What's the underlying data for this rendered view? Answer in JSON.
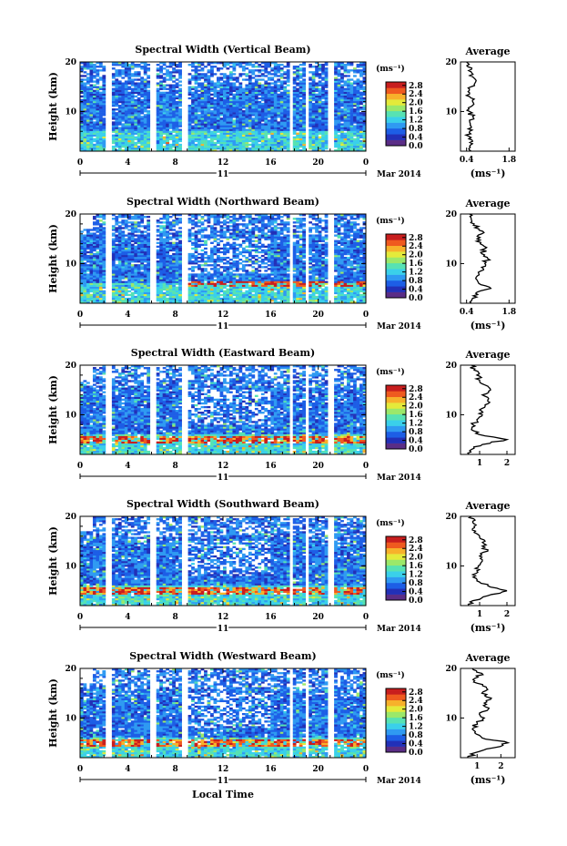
{
  "chart_data": [
    {
      "type": "heatmap",
      "title": "Spectral Width (Vertical Beam)",
      "ylabel": "Height (km)",
      "ylim": [
        2,
        20
      ],
      "yticks": [
        10,
        20
      ],
      "xlim": [
        0,
        24
      ],
      "xticks": [
        "0",
        "4",
        "8",
        "12",
        "16",
        "20",
        "0"
      ],
      "date_day": "11",
      "date_label": "Mar 2014",
      "colorbar": {
        "unit": "(ms⁻¹)",
        "ticks": [
          "0.0",
          "0.4",
          "0.8",
          "1.2",
          "1.6",
          "2.0",
          "2.4",
          "2.8"
        ]
      },
      "average": {
        "title": "Average",
        "xticks": [
          "0.4",
          "1.8"
        ],
        "xlim": [
          0.2,
          2.0
        ],
        "xlabel": "(ms⁻¹)",
        "profile": [
          [
            2,
            0.55
          ],
          [
            3,
            0.5
          ],
          [
            4,
            0.6
          ],
          [
            5,
            0.48
          ],
          [
            6,
            0.5
          ],
          [
            7,
            0.55
          ],
          [
            8,
            0.5
          ],
          [
            9,
            0.6
          ],
          [
            10,
            0.5
          ],
          [
            11,
            0.55
          ],
          [
            12,
            0.6
          ],
          [
            13,
            0.5
          ],
          [
            14,
            0.45
          ],
          [
            15,
            0.55
          ],
          [
            16,
            0.7
          ],
          [
            17,
            0.6
          ],
          [
            18,
            0.55
          ],
          [
            19,
            0.45
          ],
          [
            20,
            0.4
          ]
        ]
      }
    },
    {
      "type": "heatmap",
      "title": "Spectral Width (Northward Beam)",
      "ylabel": "Height (km)",
      "ylim": [
        2,
        20
      ],
      "yticks": [
        10,
        20
      ],
      "xlim": [
        0,
        24
      ],
      "xticks": [
        "0",
        "4",
        "8",
        "12",
        "16",
        "20",
        "0"
      ],
      "date_day": "11",
      "date_label": "Mar 2014",
      "colorbar": {
        "unit": "(ms⁻¹)",
        "ticks": [
          "0.0",
          "0.4",
          "0.8",
          "1.2",
          "1.6",
          "2.0",
          "2.4",
          "2.8"
        ]
      },
      "average": {
        "title": "Average",
        "xticks": [
          "0.4",
          "1.8"
        ],
        "xlim": [
          0.2,
          2.0
        ],
        "xlabel": "(ms⁻¹)",
        "profile": [
          [
            2,
            0.55
          ],
          [
            3,
            0.6
          ],
          [
            4,
            0.7
          ],
          [
            5,
            1.2
          ],
          [
            6,
            0.8
          ],
          [
            7,
            0.7
          ],
          [
            8,
            0.8
          ],
          [
            9,
            0.95
          ],
          [
            10,
            1.0
          ],
          [
            11,
            1.1
          ],
          [
            12,
            0.9
          ],
          [
            13,
            1.0
          ],
          [
            14,
            0.85
          ],
          [
            15,
            0.75
          ],
          [
            16,
            0.9
          ],
          [
            17,
            0.8
          ],
          [
            18,
            0.65
          ],
          [
            19,
            0.55
          ],
          [
            20,
            0.5
          ]
        ]
      }
    },
    {
      "type": "heatmap",
      "title": "Spectral Width (Eastward Beam)",
      "ylabel": "Height (km)",
      "ylim": [
        2,
        20
      ],
      "yticks": [
        10,
        20
      ],
      "xlim": [
        0,
        24
      ],
      "xticks": [
        "0",
        "4",
        "8",
        "12",
        "16",
        "20",
        "0"
      ],
      "date_day": "11",
      "date_label": "Mar 2014",
      "colorbar": {
        "unit": "(ms⁻¹)",
        "ticks": [
          "0.0",
          "0.4",
          "0.8",
          "1.2",
          "1.6",
          "2.0",
          "2.4",
          "2.8"
        ]
      },
      "average": {
        "title": "Average",
        "xticks": [
          "1",
          "2"
        ],
        "xlim": [
          0.3,
          2.3
        ],
        "xlabel": "",
        "profile": [
          [
            2,
            0.6
          ],
          [
            3,
            0.7
          ],
          [
            4,
            1.1
          ],
          [
            5,
            2.0
          ],
          [
            6,
            1.0
          ],
          [
            7,
            0.7
          ],
          [
            8,
            0.75
          ],
          [
            9,
            0.9
          ],
          [
            10,
            1.1
          ],
          [
            11,
            1.0
          ],
          [
            12,
            1.2
          ],
          [
            13,
            1.3
          ],
          [
            14,
            1.1
          ],
          [
            15,
            1.4
          ],
          [
            16,
            1.2
          ],
          [
            17,
            1.0
          ],
          [
            18,
            0.9
          ],
          [
            19,
            0.8
          ],
          [
            20,
            0.7
          ]
        ]
      }
    },
    {
      "type": "heatmap",
      "title": "Spectral Width (Southward Beam)",
      "ylabel": "Height (km)",
      "ylim": [
        2,
        20
      ],
      "yticks": [
        10,
        20
      ],
      "xlim": [
        0,
        24
      ],
      "xticks": [
        "0",
        "4",
        "8",
        "12",
        "16",
        "20",
        "0"
      ],
      "date_day": "11",
      "date_label": "Mar 2014",
      "colorbar": {
        "unit": "(ms⁻¹)",
        "ticks": [
          "0.0",
          "0.4",
          "0.8",
          "1.2",
          "1.6",
          "2.0",
          "2.4",
          "2.8"
        ]
      },
      "average": {
        "title": "Average",
        "xticks": [
          "1",
          "2"
        ],
        "xlim": [
          0.3,
          2.3
        ],
        "xlabel": "(ms⁻¹)",
        "profile": [
          [
            2,
            0.6
          ],
          [
            3,
            0.75
          ],
          [
            4,
            1.3
          ],
          [
            5,
            2.0
          ],
          [
            6,
            1.3
          ],
          [
            7,
            0.9
          ],
          [
            8,
            0.85
          ],
          [
            9,
            0.9
          ],
          [
            10,
            0.95
          ],
          [
            11,
            1.1
          ],
          [
            12,
            1.0
          ],
          [
            13,
            1.3
          ],
          [
            14,
            1.1
          ],
          [
            15,
            1.2
          ],
          [
            16,
            1.0
          ],
          [
            17,
            0.85
          ],
          [
            18,
            0.8
          ],
          [
            19,
            0.75
          ],
          [
            20,
            0.7
          ]
        ]
      }
    },
    {
      "type": "heatmap",
      "title": "Spectral Width (Westward Beam)",
      "ylabel": "Height (km)",
      "ylim": [
        2,
        20
      ],
      "yticks": [
        10,
        20
      ],
      "xlim": [
        0,
        24
      ],
      "xticks": [
        "0",
        "4",
        "8",
        "12",
        "16",
        "20",
        "0"
      ],
      "date_day": "11",
      "date_label": "Mar 2014",
      "xlabel": "Local Time",
      "colorbar": {
        "unit": "(ms⁻¹)",
        "ticks": [
          "0.0",
          "0.4",
          "0.8",
          "1.2",
          "1.6",
          "2.0",
          "2.4",
          "2.8"
        ]
      },
      "average": {
        "title": "Average",
        "xticks": [
          "1",
          "2"
        ],
        "xlim": [
          0.3,
          2.6
        ],
        "xlabel": "(ms⁻¹)",
        "profile": [
          [
            2,
            0.6
          ],
          [
            3,
            0.9
          ],
          [
            4,
            1.7
          ],
          [
            5,
            2.3
          ],
          [
            6,
            1.2
          ],
          [
            7,
            0.9
          ],
          [
            8,
            0.85
          ],
          [
            9,
            1.0
          ],
          [
            10,
            1.3
          ],
          [
            11,
            1.1
          ],
          [
            12,
            1.5
          ],
          [
            13,
            1.3
          ],
          [
            14,
            1.6
          ],
          [
            15,
            1.2
          ],
          [
            16,
            1.4
          ],
          [
            17,
            1.0
          ],
          [
            18,
            0.9
          ],
          [
            19,
            1.2
          ],
          [
            20,
            0.8
          ]
        ]
      }
    }
  ]
}
